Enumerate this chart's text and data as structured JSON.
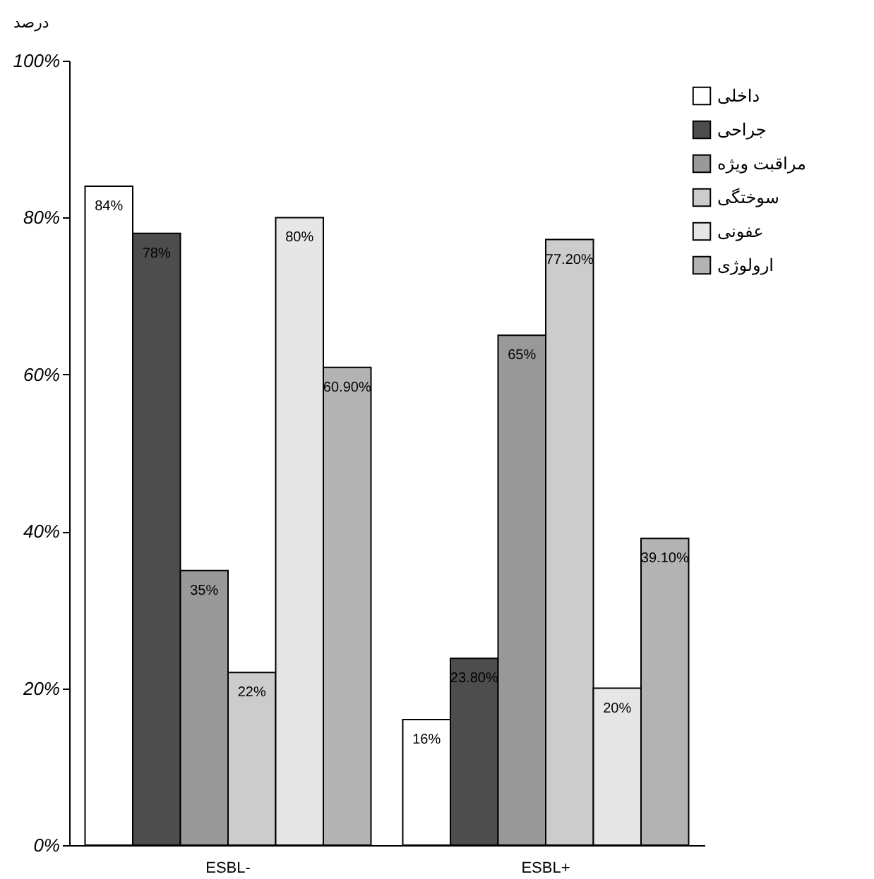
{
  "chart_data": {
    "type": "bar",
    "ylabel": "درصد",
    "categories": [
      "ESBL-",
      "ESBL+"
    ],
    "series": [
      {
        "name": "داخلی",
        "color": "#ffffff",
        "values": [
          84,
          16
        ],
        "value_labels": [
          "84%",
          "16%"
        ]
      },
      {
        "name": "جراحی",
        "color": "#4d4d4d",
        "values": [
          78,
          23.8
        ],
        "value_labels": [
          "78%",
          "23.80%"
        ]
      },
      {
        "name": "مراقبت ویژه",
        "color": "#999999",
        "values": [
          35,
          65
        ],
        "value_labels": [
          "35%",
          "65%"
        ]
      },
      {
        "name": "سوختگی",
        "color": "#cccccc",
        "values": [
          22,
          77.2
        ],
        "value_labels": [
          "22%",
          "77.20%"
        ]
      },
      {
        "name": "عفونی",
        "color": "#e6e6e6",
        "values": [
          80,
          20
        ],
        "value_labels": [
          "80%",
          "20%"
        ]
      },
      {
        "name": "ارولوژی",
        "color": "#b3b3b3",
        "values": [
          60.9,
          39.1
        ],
        "value_labels": [
          "60.90%",
          "39.10%"
        ]
      }
    ],
    "ylim": [
      0,
      100
    ],
    "yticks": [
      {
        "value": 0,
        "label": "0%"
      },
      {
        "value": 20,
        "label": "20%"
      },
      {
        "value": 40,
        "label": "40%"
      },
      {
        "value": 60,
        "label": "60%"
      },
      {
        "value": 80,
        "label": "80%"
      },
      {
        "value": 100,
        "label": "100%"
      }
    ],
    "grid": false,
    "legend": "top right"
  }
}
